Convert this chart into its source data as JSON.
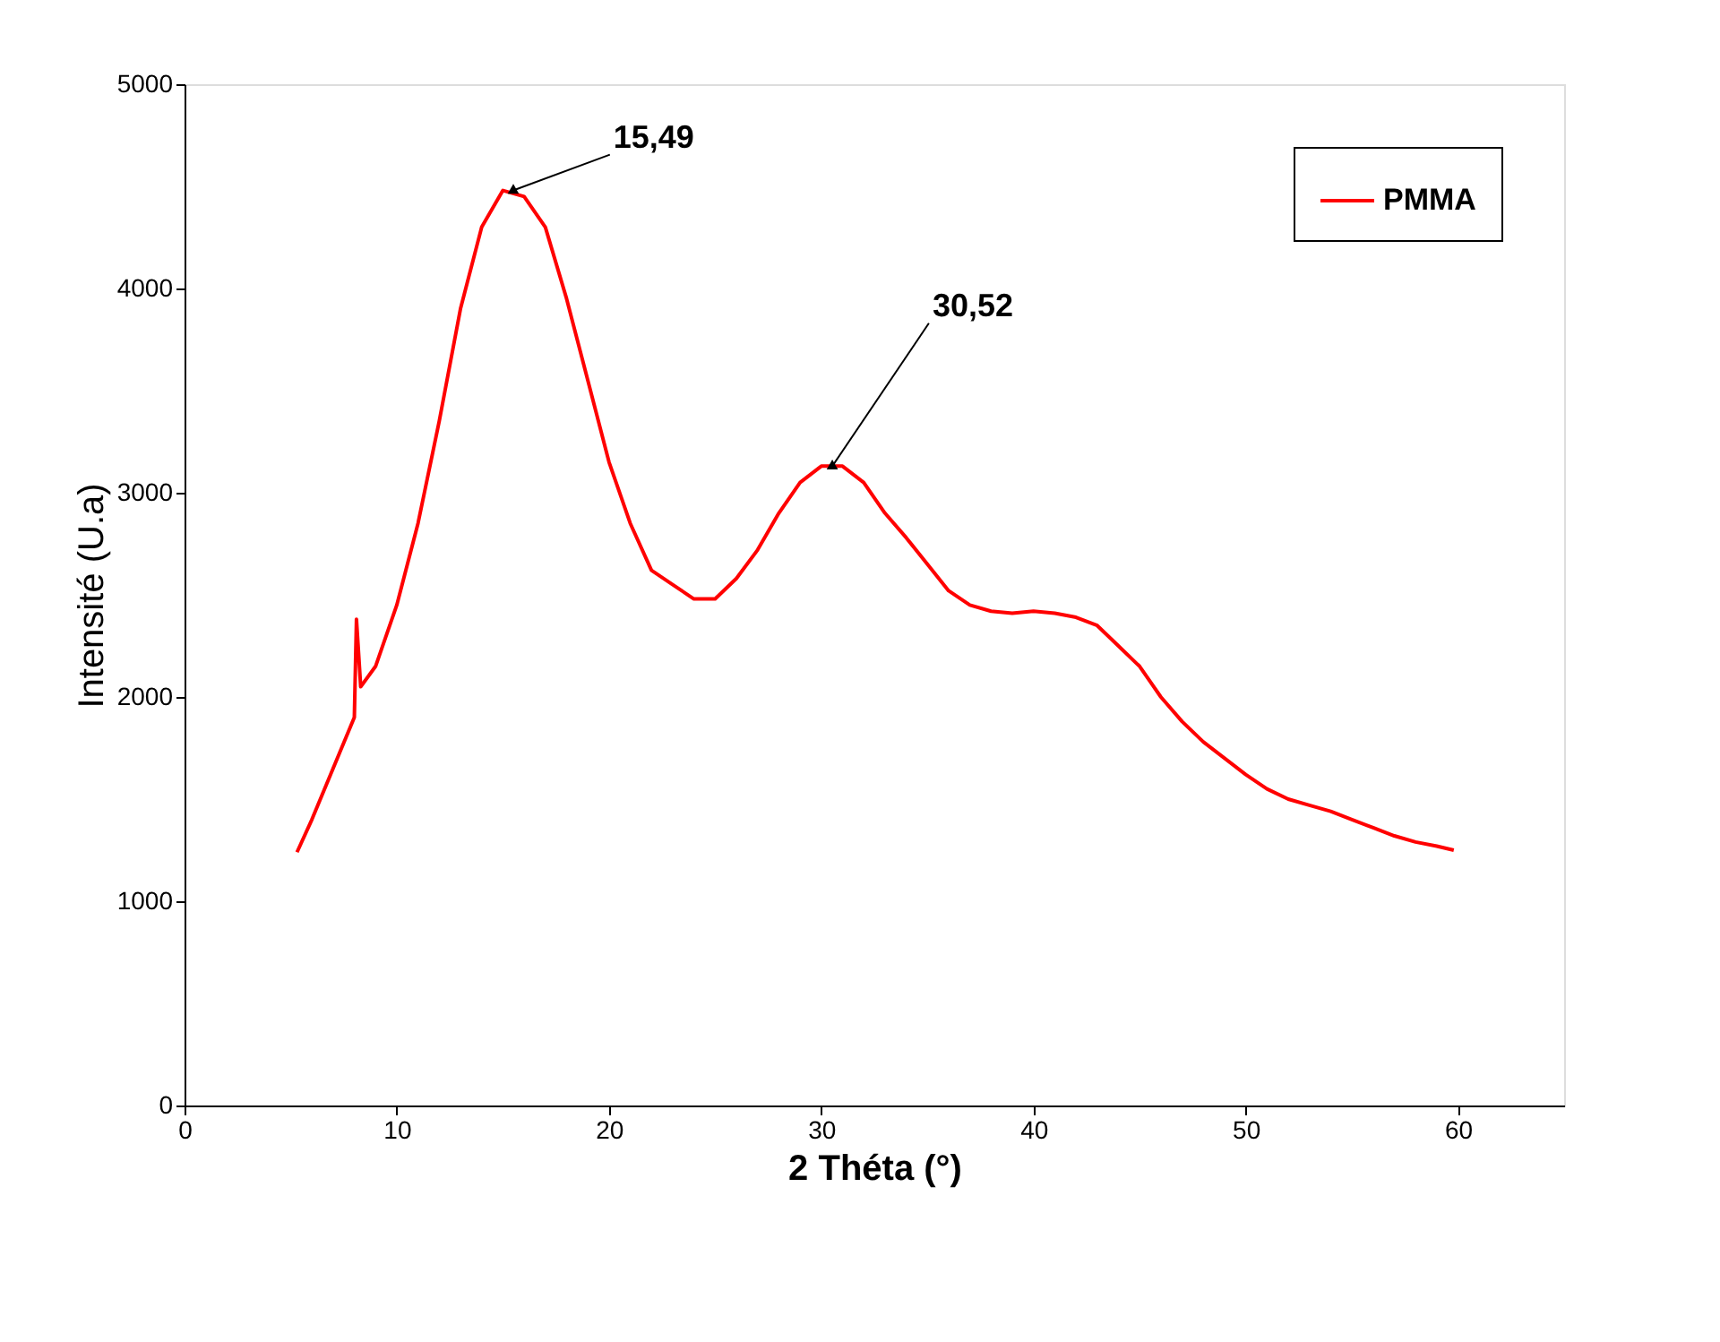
{
  "chart_data": {
    "type": "line",
    "xlabel": "2 Théta (°)",
    "ylabel": "Intensité (U.a)",
    "xlim": [
      0,
      65
    ],
    "xticks": [
      0,
      10,
      20,
      30,
      40,
      50,
      60
    ],
    "ylim": [
      0,
      5000
    ],
    "yticks": [
      0,
      1000,
      2000,
      3000,
      4000,
      5000
    ],
    "grid": false,
    "legend": "top right",
    "line_style": "solid",
    "marker": "none",
    "series": [
      {
        "name": "PMMA",
        "color": "#ff0000",
        "x": [
          5.3,
          6,
          7,
          8,
          8.1,
          8.3,
          9,
          10,
          11,
          12,
          13,
          14,
          15,
          16,
          17,
          18,
          19,
          20,
          21,
          22,
          23,
          24,
          25,
          26,
          27,
          28,
          29,
          30,
          31,
          32,
          33,
          34,
          35,
          36,
          37,
          38,
          39,
          40,
          41,
          42,
          43,
          44,
          45,
          46,
          47,
          48,
          49,
          50,
          51,
          52,
          53,
          54,
          55,
          56,
          57,
          58,
          59,
          59.8
        ],
        "values": [
          1240,
          1400,
          1650,
          1900,
          2380,
          2050,
          2150,
          2450,
          2850,
          3350,
          3900,
          4300,
          4480,
          4450,
          4300,
          3950,
          3550,
          3150,
          2850,
          2620,
          2550,
          2480,
          2480,
          2580,
          2720,
          2900,
          3050,
          3130,
          3130,
          3050,
          2900,
          2780,
          2650,
          2520,
          2450,
          2420,
          2410,
          2420,
          2410,
          2390,
          2350,
          2250,
          2150,
          2000,
          1880,
          1780,
          1700,
          1620,
          1550,
          1500,
          1470,
          1440,
          1400,
          1360,
          1320,
          1290,
          1270,
          1250
        ]
      }
    ],
    "annotations": [
      {
        "text": "15,49",
        "x": 15.49,
        "y": 4480
      },
      {
        "text": "30,52",
        "x": 30.52,
        "y": 3130
      }
    ]
  }
}
